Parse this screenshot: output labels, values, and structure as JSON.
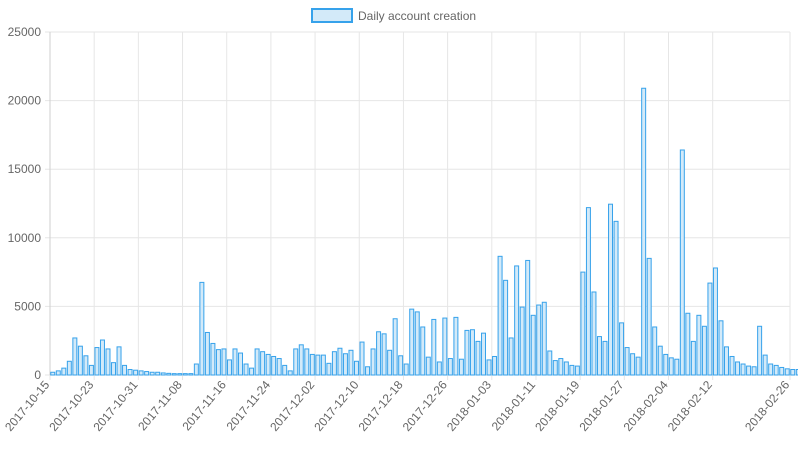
{
  "chart_data": {
    "type": "bar",
    "legend": {
      "label": "Daily account creation",
      "position": "top-center"
    },
    "colors": {
      "bar_fill": "#d3eaf9",
      "bar_stroke": "#36a2eb",
      "grid": "#e6e6e6",
      "text": "#666666"
    },
    "grid": true,
    "ylim": [
      0,
      25000
    ],
    "yticks": [
      0,
      5000,
      10000,
      15000,
      20000,
      25000
    ],
    "ytick_labels": [
      "0",
      "5000",
      "10000",
      "15000",
      "20000",
      "25000"
    ],
    "xtick_labels": [
      "2017-10-15",
      "2017-10-23",
      "2017-10-31",
      "2017-11-08",
      "2017-11-16",
      "2017-11-24",
      "2017-12-02",
      "2017-12-10",
      "2017-12-18",
      "2017-12-26",
      "2018-01-03",
      "2018-01-11",
      "2018-01-19",
      "2018-01-27",
      "2018-02-04",
      "2018-02-12",
      "2018-02-26"
    ],
    "start_date": "2017-10-15",
    "values": [
      200,
      300,
      500,
      1000,
      2700,
      2100,
      1400,
      700,
      2000,
      2550,
      1900,
      900,
      2050,
      700,
      400,
      350,
      300,
      250,
      200,
      200,
      150,
      120,
      100,
      100,
      100,
      100,
      800,
      6750,
      3100,
      2300,
      1850,
      1900,
      1100,
      1900,
      1600,
      800,
      500,
      1900,
      1700,
      1500,
      1350,
      1200,
      700,
      300,
      1900,
      2200,
      1900,
      1500,
      1450,
      1450,
      850,
      1700,
      1950,
      1550,
      1800,
      1000,
      2400,
      600,
      1900,
      3150,
      3000,
      1800,
      4100,
      1400,
      800,
      4800,
      4600,
      3500,
      1300,
      4050,
      950,
      4150,
      1200,
      4200,
      1150,
      3250,
      3300,
      2450,
      3050,
      1100,
      1350,
      8650,
      6900,
      2700,
      7950,
      4950,
      8350,
      4350,
      5100,
      5300,
      1750,
      1050,
      1200,
      950,
      700,
      650,
      7500,
      12200,
      6050,
      2800,
      2450,
      12450,
      11200,
      3800,
      2000,
      1550,
      1300,
      20900,
      8500,
      3500,
      2100,
      1500,
      1250,
      1150,
      16400,
      4500,
      2450,
      4350,
      3550,
      6700,
      7800,
      3950,
      2050,
      1350,
      950,
      800,
      650,
      600,
      3550,
      1450,
      800,
      700,
      550,
      450,
      400,
      400
    ]
  }
}
